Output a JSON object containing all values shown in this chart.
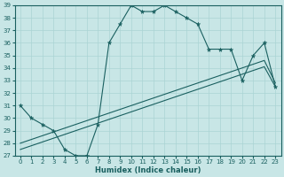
{
  "xlabel": "Humidex (Indice chaleur)",
  "xlim": [
    -0.5,
    23.5
  ],
  "ylim": [
    27,
    39
  ],
  "yticks": [
    27,
    28,
    29,
    30,
    31,
    32,
    33,
    34,
    35,
    36,
    37,
    38,
    39
  ],
  "xticks": [
    0,
    1,
    2,
    3,
    4,
    5,
    6,
    7,
    8,
    9,
    10,
    11,
    12,
    13,
    14,
    15,
    16,
    17,
    18,
    19,
    20,
    21,
    22,
    23
  ],
  "bg_color": "#c8e6e6",
  "grid_color": "#aad4d4",
  "line_color": "#1a6060",
  "series1_x": [
    0,
    1,
    2,
    3,
    4,
    5,
    6,
    7,
    8,
    9,
    10,
    11,
    12,
    13,
    14,
    15,
    16,
    17,
    18,
    19,
    20,
    21,
    22,
    23
  ],
  "series1_y": [
    31,
    30,
    29.5,
    29,
    27.5,
    27,
    27,
    29.5,
    36,
    37.5,
    39,
    38.5,
    38.5,
    39,
    38.5,
    38,
    37.5,
    35.5,
    35.5,
    35.5,
    33,
    35,
    36,
    32.5
  ],
  "series2_x": [
    0,
    1,
    2,
    3,
    4,
    5,
    6,
    7,
    8,
    9,
    10,
    11,
    12,
    13,
    14,
    15,
    16,
    17,
    18,
    19,
    20,
    21,
    22,
    23
  ],
  "series2_y": [
    27.5,
    27.8,
    28.1,
    28.4,
    28.7,
    29.0,
    29.3,
    29.6,
    29.9,
    30.2,
    30.5,
    30.8,
    31.1,
    31.4,
    31.7,
    32.0,
    32.3,
    32.6,
    32.9,
    33.2,
    33.5,
    33.8,
    34.1,
    32.5
  ],
  "series3_x": [
    0,
    1,
    2,
    3,
    4,
    5,
    6,
    7,
    8,
    9,
    10,
    11,
    12,
    13,
    14,
    15,
    16,
    17,
    18,
    19,
    20,
    21,
    22,
    23
  ],
  "series3_y": [
    28.0,
    28.3,
    28.6,
    28.9,
    29.2,
    29.5,
    29.8,
    30.1,
    30.4,
    30.7,
    31.0,
    31.3,
    31.6,
    31.9,
    32.2,
    32.5,
    32.8,
    33.1,
    33.4,
    33.7,
    34.0,
    34.3,
    34.6,
    32.8
  ]
}
